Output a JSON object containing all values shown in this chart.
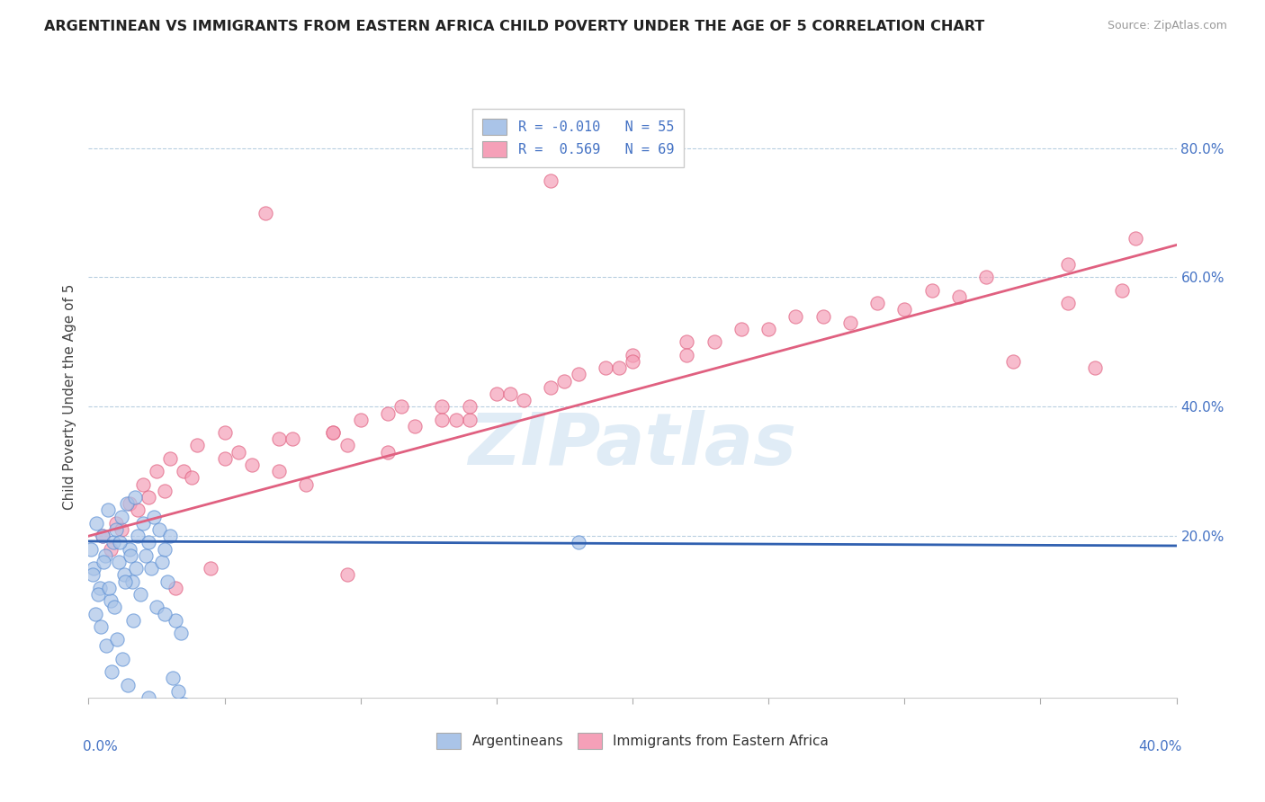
{
  "title": "ARGENTINEAN VS IMMIGRANTS FROM EASTERN AFRICA CHILD POVERTY UNDER THE AGE OF 5 CORRELATION CHART",
  "source": "Source: ZipAtlas.com",
  "ylabel": "Child Poverty Under the Age of 5",
  "xlim": [
    0.0,
    40.0
  ],
  "ylim": [
    -5.0,
    88.0
  ],
  "yticks_right": [
    20.0,
    40.0,
    60.0,
    80.0
  ],
  "ytick_labels_right": [
    "20.0%",
    "40.0%",
    "60.0%",
    "80.0%"
  ],
  "color_blue": "#aac4e8",
  "color_pink": "#f5a0b8",
  "color_blue_edge": "#5b8fd4",
  "color_pink_edge": "#e06080",
  "color_blue_line": "#3060b0",
  "color_pink_line": "#e06080",
  "color_text_blue": "#4472c4",
  "color_watermark": "#cce0f0",
  "background_color": "#ffffff",
  "grid_color": "#b8cfe0",
  "argentineans_x": [
    0.1,
    0.2,
    0.3,
    0.4,
    0.5,
    0.6,
    0.7,
    0.8,
    0.9,
    1.0,
    1.1,
    1.2,
    1.3,
    1.4,
    1.5,
    1.6,
    1.7,
    1.8,
    1.9,
    2.0,
    2.1,
    2.2,
    2.3,
    2.4,
    2.5,
    2.6,
    2.7,
    2.8,
    2.9,
    3.0,
    3.1,
    3.2,
    3.3,
    3.4,
    3.5,
    0.15,
    0.25,
    0.35,
    0.45,
    0.55,
    0.65,
    0.75,
    0.85,
    0.95,
    1.05,
    1.15,
    1.25,
    1.35,
    1.45,
    1.55,
    1.65,
    1.75,
    18.0,
    2.2,
    2.8
  ],
  "argentineans_y": [
    18.0,
    15.0,
    22.0,
    12.0,
    20.0,
    17.0,
    24.0,
    10.0,
    19.0,
    21.0,
    16.0,
    23.0,
    14.0,
    25.0,
    18.0,
    13.0,
    26.0,
    20.0,
    11.0,
    22.0,
    17.0,
    19.0,
    15.0,
    23.0,
    9.0,
    21.0,
    16.0,
    18.0,
    13.0,
    20.0,
    -2.0,
    7.0,
    -4.0,
    5.0,
    -6.0,
    14.0,
    8.0,
    11.0,
    6.0,
    16.0,
    3.0,
    12.0,
    -1.0,
    9.0,
    4.0,
    19.0,
    1.0,
    13.0,
    -3.0,
    17.0,
    7.0,
    15.0,
    19.0,
    -5.0,
    8.0
  ],
  "eastern_africa_x": [
    0.5,
    1.0,
    1.5,
    2.0,
    2.5,
    3.0,
    4.0,
    5.0,
    6.0,
    7.0,
    8.0,
    9.0,
    10.0,
    11.0,
    12.0,
    13.0,
    14.0,
    15.0,
    16.0,
    17.0,
    18.0,
    19.0,
    20.0,
    22.0,
    24.0,
    26.0,
    28.0,
    30.0,
    32.0,
    34.0,
    36.0,
    38.0,
    1.2,
    2.2,
    3.5,
    5.5,
    7.5,
    9.5,
    11.5,
    13.5,
    15.5,
    17.5,
    19.5,
    0.8,
    1.8,
    2.8,
    3.8,
    5.0,
    7.0,
    9.0,
    11.0,
    13.0,
    14.0,
    17.0,
    20.0,
    23.0,
    25.0,
    27.0,
    29.0,
    31.0,
    33.0,
    36.0,
    38.5,
    6.5,
    22.0,
    4.5,
    37.0,
    3.2,
    9.5
  ],
  "eastern_africa_y": [
    20.0,
    22.0,
    25.0,
    28.0,
    30.0,
    32.0,
    34.0,
    36.0,
    31.0,
    35.0,
    28.0,
    36.0,
    38.0,
    33.0,
    37.0,
    40.0,
    38.0,
    42.0,
    41.0,
    75.0,
    45.0,
    46.0,
    48.0,
    50.0,
    52.0,
    54.0,
    53.0,
    55.0,
    57.0,
    47.0,
    56.0,
    58.0,
    21.0,
    26.0,
    30.0,
    33.0,
    35.0,
    34.0,
    40.0,
    38.0,
    42.0,
    44.0,
    46.0,
    18.0,
    24.0,
    27.0,
    29.0,
    32.0,
    30.0,
    36.0,
    39.0,
    38.0,
    40.0,
    43.0,
    47.0,
    50.0,
    52.0,
    54.0,
    56.0,
    58.0,
    60.0,
    62.0,
    66.0,
    70.0,
    48.0,
    15.0,
    46.0,
    12.0,
    14.0
  ]
}
